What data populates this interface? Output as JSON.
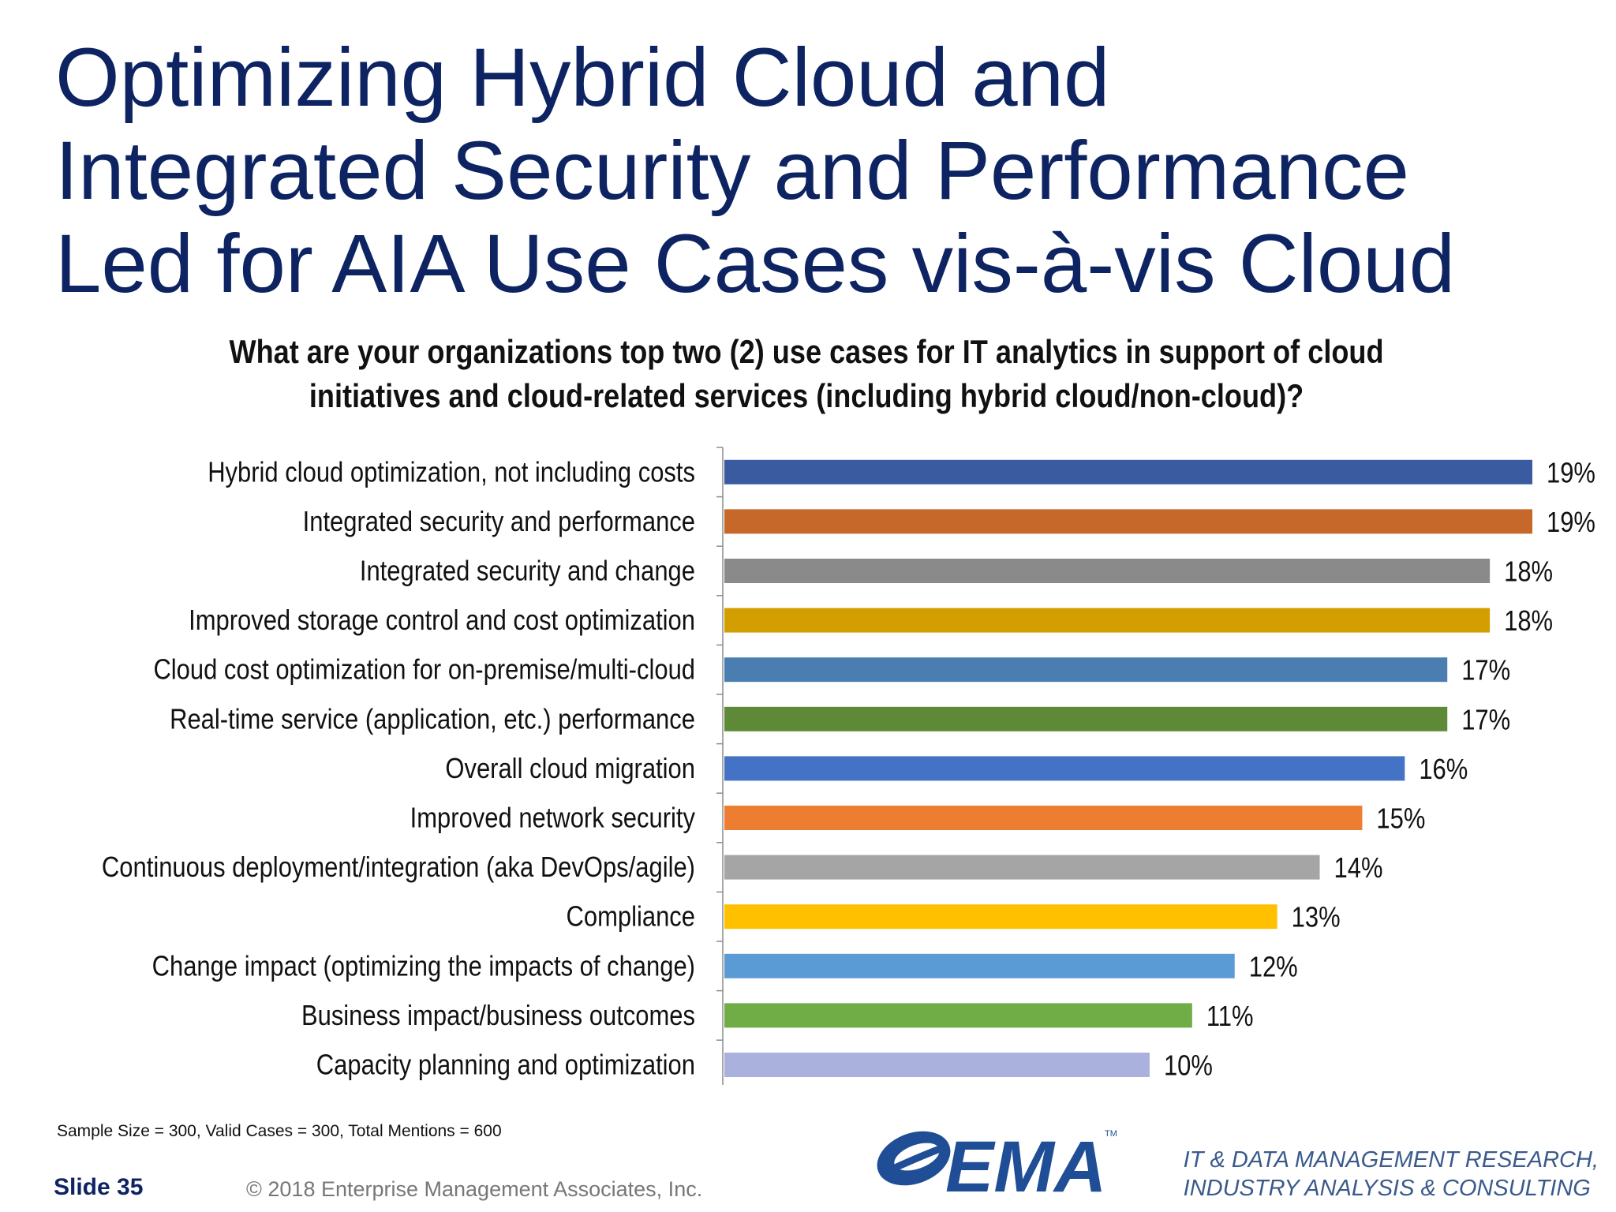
{
  "slide": {
    "title_lines": [
      "Optimizing Hybrid Cloud and",
      "Integrated Security and Performance",
      "Led for AIA Use Cases vis-à-vis Cloud"
    ],
    "question_lines": [
      "What are your organizations top two (2) use cases for IT analytics in support of cloud",
      "initiatives and cloud-related services (including hybrid cloud/non-cloud)?"
    ],
    "sample_note": "Sample Size = 300, Valid Cases = 300, Total Mentions = 600",
    "slide_number": "Slide 35",
    "copyright": "© 2018 Enterprise Management Associates, Inc.",
    "logo_text": "EMA",
    "logo_tm": "TM",
    "tagline_lines": [
      "IT & DATA MANAGEMENT RESEARCH,",
      "INDUSTRY ANALYSIS & CONSULTING"
    ]
  },
  "colors": {
    "title": "#0e2462",
    "logo": "#1f4e96"
  },
  "chart_data": {
    "type": "bar",
    "orientation": "horizontal",
    "xlim": [
      0,
      20
    ],
    "grid": false,
    "categories": [
      "Hybrid cloud optimization, not including costs",
      "Integrated security and performance",
      "Integrated security and change",
      "Improved storage control and cost optimization",
      "Cloud cost optimization for on-premise/multi-cloud",
      "Real-time service (application, etc.) performance",
      "Overall cloud migration",
      "Improved network security",
      "Continuous deployment/integration (aka DevOps/agile)",
      "Compliance",
      "Change impact (optimizing the impacts of change)",
      "Business impact/business outcomes",
      "Capacity planning and optimization"
    ],
    "values": [
      19,
      19,
      18,
      18,
      17,
      17,
      16,
      15,
      14,
      13,
      12,
      11,
      10
    ],
    "value_labels": [
      "19%",
      "19%",
      "18%",
      "18%",
      "17%",
      "17%",
      "16%",
      "15%",
      "14%",
      "13%",
      "12%",
      "11%",
      "10%"
    ],
    "colors": [
      "#3a5ba0",
      "#c5682a",
      "#8a8a8a",
      "#d39e00",
      "#4a7eb0",
      "#5e8a38",
      "#4472c4",
      "#ed7d31",
      "#a5a5a5",
      "#ffc000",
      "#5b9bd5",
      "#70ad47",
      "#aab1dc"
    ]
  }
}
